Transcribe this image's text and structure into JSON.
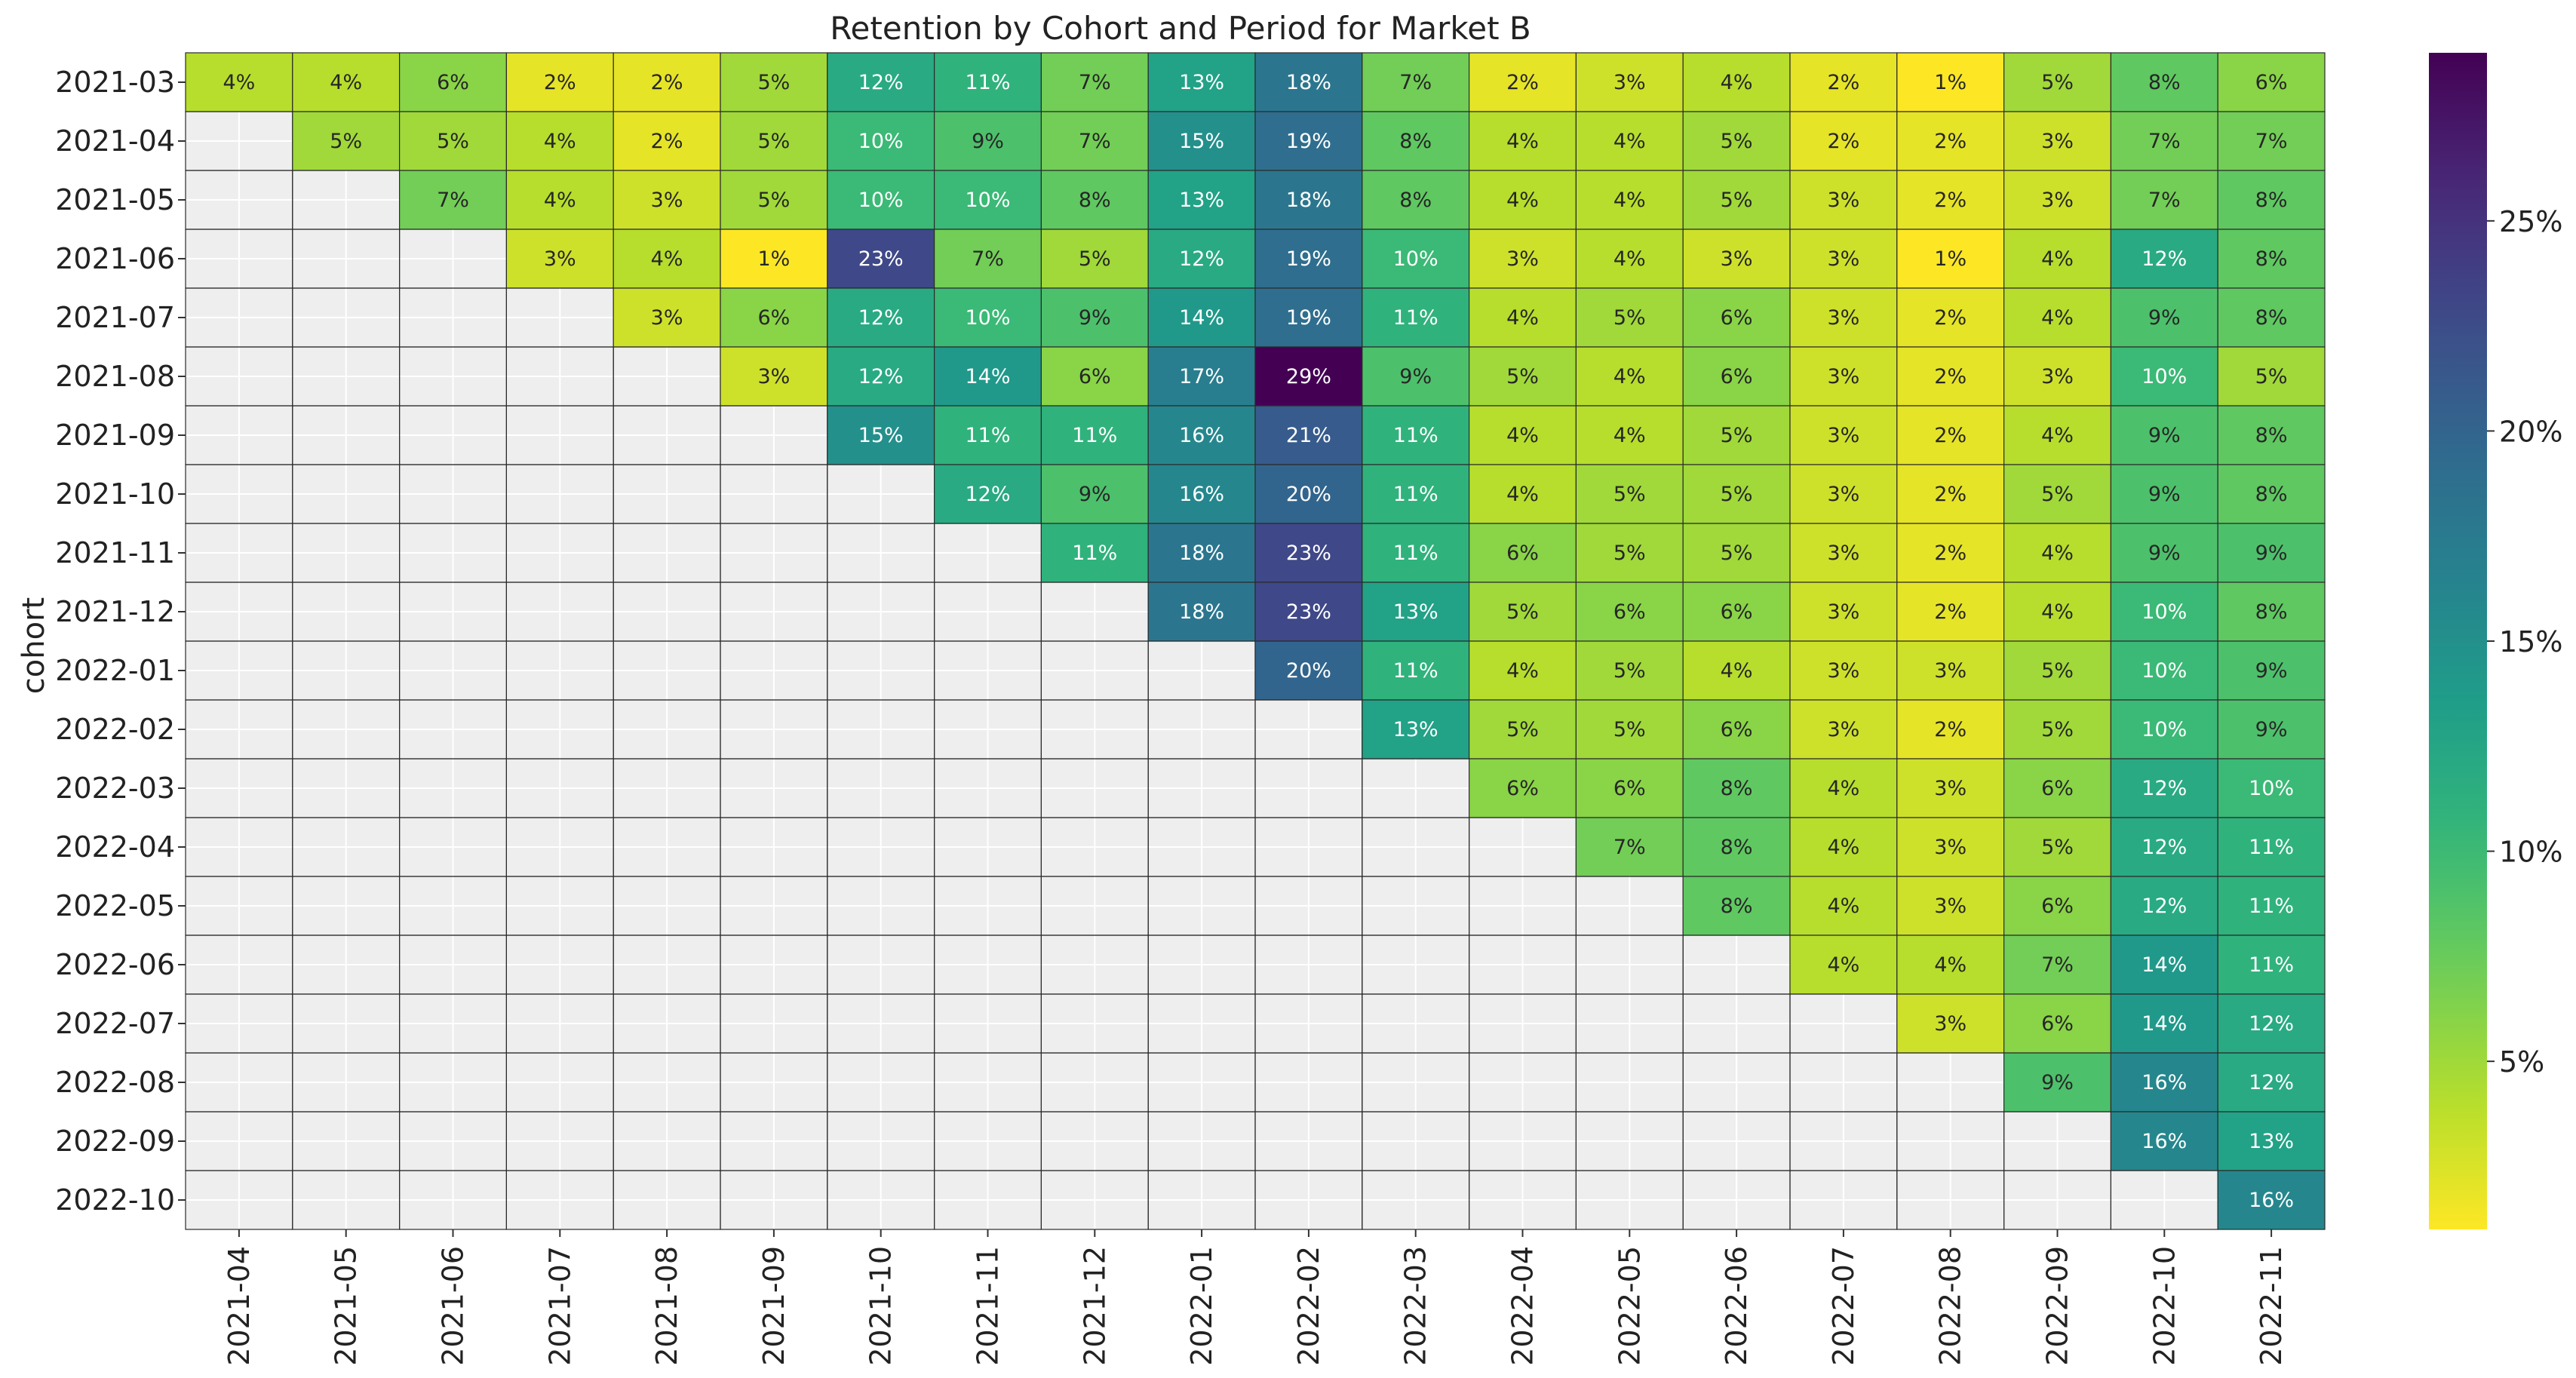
{
  "chart_data": {
    "type": "heatmap",
    "title": "Retention by Cohort and Period for Market B",
    "xlabel": "",
    "ylabel": "cohort",
    "x_categories": [
      "2021-04",
      "2021-05",
      "2021-06",
      "2021-07",
      "2021-08",
      "2021-09",
      "2021-10",
      "2021-11",
      "2021-12",
      "2022-01",
      "2022-02",
      "2022-03",
      "2022-04",
      "2022-05",
      "2022-06",
      "2022-07",
      "2022-08",
      "2022-09",
      "2022-10",
      "2022-11"
    ],
    "y_categories": [
      "2021-03",
      "2021-04",
      "2021-05",
      "2021-06",
      "2021-07",
      "2021-08",
      "2021-09",
      "2021-10",
      "2021-11",
      "2021-12",
      "2022-01",
      "2022-02",
      "2022-03",
      "2022-04",
      "2022-05",
      "2022-06",
      "2022-07",
      "2022-08",
      "2022-09",
      "2022-10"
    ],
    "values": [
      [
        4,
        4,
        6,
        2,
        2,
        5,
        12,
        11,
        7,
        13,
        18,
        7,
        2,
        3,
        4,
        2,
        1,
        5,
        8,
        6
      ],
      [
        null,
        5,
        5,
        4,
        2,
        5,
        10,
        9,
        7,
        15,
        19,
        8,
        4,
        4,
        5,
        2,
        2,
        3,
        7,
        7
      ],
      [
        null,
        null,
        7,
        4,
        3,
        5,
        10,
        10,
        8,
        13,
        18,
        8,
        4,
        4,
        5,
        3,
        2,
        3,
        7,
        8
      ],
      [
        null,
        null,
        null,
        3,
        4,
        1,
        23,
        7,
        5,
        12,
        19,
        10,
        3,
        4,
        3,
        3,
        1,
        4,
        12,
        8
      ],
      [
        null,
        null,
        null,
        null,
        3,
        6,
        12,
        10,
        9,
        14,
        19,
        11,
        4,
        5,
        6,
        3,
        2,
        4,
        9,
        8
      ],
      [
        null,
        null,
        null,
        null,
        null,
        3,
        12,
        14,
        6,
        17,
        29,
        9,
        5,
        4,
        6,
        3,
        2,
        3,
        10,
        5
      ],
      [
        null,
        null,
        null,
        null,
        null,
        null,
        15,
        11,
        11,
        16,
        21,
        11,
        4,
        4,
        5,
        3,
        2,
        4,
        9,
        8
      ],
      [
        null,
        null,
        null,
        null,
        null,
        null,
        null,
        12,
        9,
        16,
        20,
        11,
        4,
        5,
        5,
        3,
        2,
        5,
        9,
        8
      ],
      [
        null,
        null,
        null,
        null,
        null,
        null,
        null,
        null,
        11,
        18,
        23,
        11,
        6,
        5,
        5,
        3,
        2,
        4,
        9,
        9
      ],
      [
        null,
        null,
        null,
        null,
        null,
        null,
        null,
        null,
        null,
        18,
        23,
        13,
        5,
        6,
        6,
        3,
        2,
        4,
        10,
        8
      ],
      [
        null,
        null,
        null,
        null,
        null,
        null,
        null,
        null,
        null,
        null,
        20,
        11,
        4,
        5,
        4,
        3,
        3,
        5,
        10,
        9
      ],
      [
        null,
        null,
        null,
        null,
        null,
        null,
        null,
        null,
        null,
        null,
        null,
        13,
        5,
        5,
        6,
        3,
        2,
        5,
        10,
        9
      ],
      [
        null,
        null,
        null,
        null,
        null,
        null,
        null,
        null,
        null,
        null,
        null,
        null,
        6,
        6,
        8,
        4,
        3,
        6,
        12,
        10
      ],
      [
        null,
        null,
        null,
        null,
        null,
        null,
        null,
        null,
        null,
        null,
        null,
        null,
        null,
        7,
        8,
        4,
        3,
        5,
        12,
        11
      ],
      [
        null,
        null,
        null,
        null,
        null,
        null,
        null,
        null,
        null,
        null,
        null,
        null,
        null,
        null,
        8,
        4,
        3,
        6,
        12,
        11
      ],
      [
        null,
        null,
        null,
        null,
        null,
        null,
        null,
        null,
        null,
        null,
        null,
        null,
        null,
        null,
        null,
        4,
        4,
        7,
        14,
        11
      ],
      [
        null,
        null,
        null,
        null,
        null,
        null,
        null,
        null,
        null,
        null,
        null,
        null,
        null,
        null,
        null,
        null,
        3,
        6,
        14,
        12
      ],
      [
        null,
        null,
        null,
        null,
        null,
        null,
        null,
        null,
        null,
        null,
        null,
        null,
        null,
        null,
        null,
        null,
        null,
        9,
        16,
        12
      ],
      [
        null,
        null,
        null,
        null,
        null,
        null,
        null,
        null,
        null,
        null,
        null,
        null,
        null,
        null,
        null,
        null,
        null,
        null,
        16,
        13
      ],
      [
        null,
        null,
        null,
        null,
        null,
        null,
        null,
        null,
        null,
        null,
        null,
        null,
        null,
        null,
        null,
        null,
        null,
        null,
        null,
        16
      ]
    ],
    "value_suffix": "%",
    "colormap": "viridis_r",
    "vmin": 1,
    "vmax": 29,
    "colorbar": {
      "ticks": [
        5,
        10,
        15,
        20,
        25
      ],
      "tick_labels": [
        "5%",
        "10%",
        "15%",
        "20%",
        "25%"
      ],
      "placement": "right"
    },
    "missing_color": "#eeeeee",
    "grid": true
  }
}
